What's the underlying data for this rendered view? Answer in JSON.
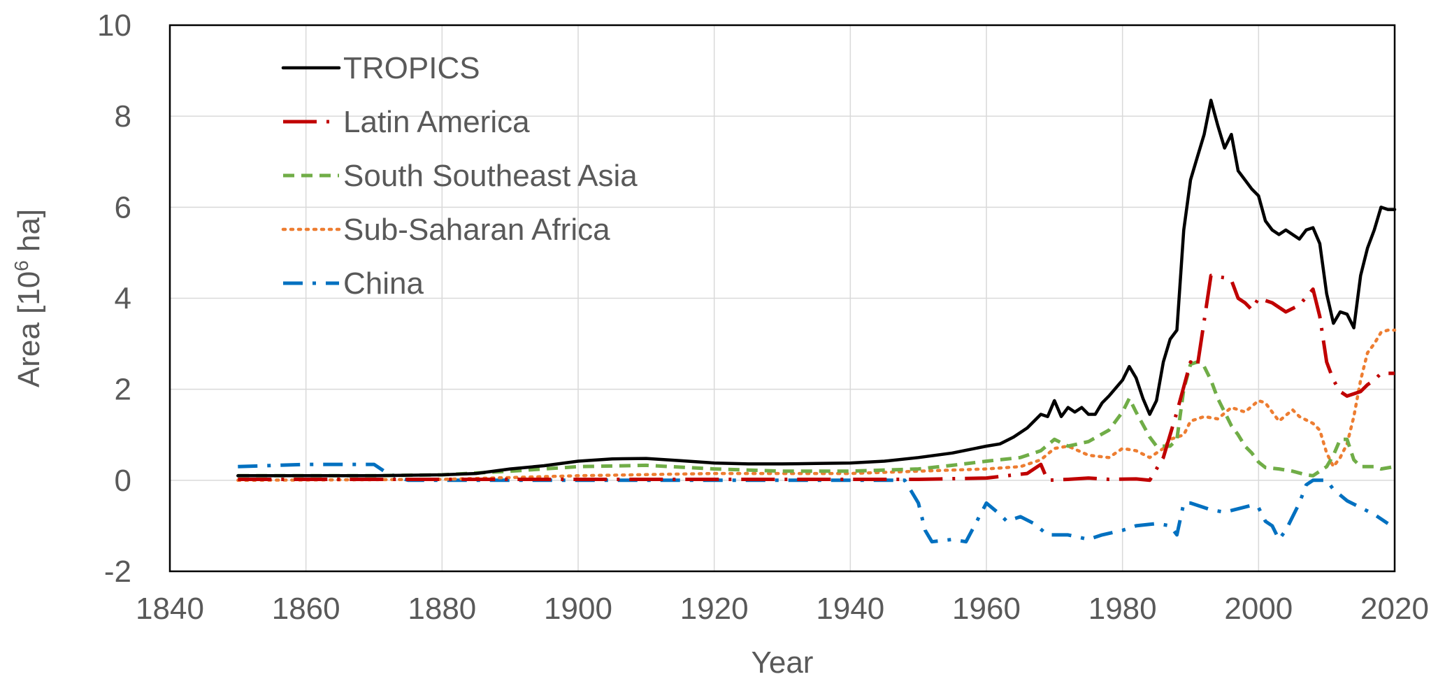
{
  "chart_data": {
    "type": "line",
    "xlabel": "Year",
    "ylabel_main": "Area [10",
    "ylabel_sup": "6",
    "ylabel_end": " ha]",
    "xlim": [
      1840,
      2020
    ],
    "ylim": [
      -2,
      10
    ],
    "xticks": [
      "1840",
      "1860",
      "1880",
      "1900",
      "1920",
      "1940",
      "1960",
      "1980",
      "2000",
      "2020"
    ],
    "yticks": [
      "-2",
      "0",
      "2",
      "4",
      "6",
      "8",
      "10"
    ],
    "grid": true,
    "legend_position": "top-left",
    "series": [
      {
        "name": "TROPICS",
        "color": "#000000",
        "style": "solid",
        "points": [
          [
            1850,
            0.1
          ],
          [
            1860,
            0.1
          ],
          [
            1870,
            0.1
          ],
          [
            1880,
            0.12
          ],
          [
            1885,
            0.15
          ],
          [
            1890,
            0.25
          ],
          [
            1895,
            0.32
          ],
          [
            1900,
            0.42
          ],
          [
            1905,
            0.47
          ],
          [
            1910,
            0.48
          ],
          [
            1915,
            0.43
          ],
          [
            1920,
            0.38
          ],
          [
            1925,
            0.36
          ],
          [
            1930,
            0.36
          ],
          [
            1935,
            0.37
          ],
          [
            1940,
            0.38
          ],
          [
            1945,
            0.42
          ],
          [
            1950,
            0.5
          ],
          [
            1955,
            0.6
          ],
          [
            1960,
            0.75
          ],
          [
            1962,
            0.8
          ],
          [
            1964,
            0.95
          ],
          [
            1966,
            1.15
          ],
          [
            1968,
            1.45
          ],
          [
            1969,
            1.4
          ],
          [
            1970,
            1.75
          ],
          [
            1971,
            1.4
          ],
          [
            1972,
            1.6
          ],
          [
            1973,
            1.5
          ],
          [
            1974,
            1.6
          ],
          [
            1975,
            1.45
          ],
          [
            1976,
            1.45
          ],
          [
            1977,
            1.7
          ],
          [
            1978,
            1.85
          ],
          [
            1980,
            2.2
          ],
          [
            1981,
            2.5
          ],
          [
            1982,
            2.25
          ],
          [
            1983,
            1.8
          ],
          [
            1984,
            1.45
          ],
          [
            1985,
            1.75
          ],
          [
            1986,
            2.6
          ],
          [
            1987,
            3.1
          ],
          [
            1988,
            3.3
          ],
          [
            1989,
            5.5
          ],
          [
            1990,
            6.6
          ],
          [
            1991,
            7.1
          ],
          [
            1992,
            7.6
          ],
          [
            1993,
            8.35
          ],
          [
            1994,
            7.8
          ],
          [
            1995,
            7.3
          ],
          [
            1996,
            7.6
          ],
          [
            1997,
            6.8
          ],
          [
            1998,
            6.6
          ],
          [
            1999,
            6.4
          ],
          [
            2000,
            6.25
          ],
          [
            2001,
            5.7
          ],
          [
            2002,
            5.5
          ],
          [
            2003,
            5.4
          ],
          [
            2004,
            5.5
          ],
          [
            2005,
            5.4
          ],
          [
            2006,
            5.3
          ],
          [
            2007,
            5.5
          ],
          [
            2008,
            5.55
          ],
          [
            2009,
            5.2
          ],
          [
            2010,
            4.1
          ],
          [
            2011,
            3.45
          ],
          [
            2012,
            3.7
          ],
          [
            2013,
            3.65
          ],
          [
            2014,
            3.35
          ],
          [
            2015,
            4.5
          ],
          [
            2016,
            5.1
          ],
          [
            2017,
            5.5
          ],
          [
            2018,
            6.0
          ],
          [
            2019,
            5.95
          ],
          [
            2020,
            5.95
          ]
        ]
      },
      {
        "name": "Latin America",
        "color": "#c00000",
        "style": "longdash",
        "points": [
          [
            1850,
            0.02
          ],
          [
            1900,
            0.02
          ],
          [
            1950,
            0.02
          ],
          [
            1960,
            0.05
          ],
          [
            1963,
            0.1
          ],
          [
            1966,
            0.15
          ],
          [
            1967,
            0.25
          ],
          [
            1968,
            0.35
          ],
          [
            1969,
            0.0
          ],
          [
            1972,
            0.02
          ],
          [
            1975,
            0.05
          ],
          [
            1978,
            0.02
          ],
          [
            1982,
            0.03
          ],
          [
            1984,
            0.0
          ],
          [
            1986,
            0.5
          ],
          [
            1988,
            1.5
          ],
          [
            1990,
            2.6
          ],
          [
            1991,
            2.5
          ],
          [
            1992,
            3.5
          ],
          [
            1993,
            4.5
          ],
          [
            1995,
            4.45
          ],
          [
            1996,
            4.4
          ],
          [
            1997,
            4.0
          ],
          [
            1998,
            3.9
          ],
          [
            1999,
            3.75
          ],
          [
            2000,
            4.0
          ],
          [
            2002,
            3.9
          ],
          [
            2004,
            3.7
          ],
          [
            2006,
            3.85
          ],
          [
            2008,
            4.2
          ],
          [
            2009,
            3.6
          ],
          [
            2010,
            2.6
          ],
          [
            2011,
            2.2
          ],
          [
            2012,
            1.95
          ],
          [
            2013,
            1.85
          ],
          [
            2015,
            1.95
          ],
          [
            2016,
            2.1
          ],
          [
            2017,
            2.2
          ],
          [
            2018,
            2.35
          ],
          [
            2020,
            2.35
          ]
        ]
      },
      {
        "name": "South Southeast Asia",
        "color": "#70ad47",
        "style": "dash",
        "points": [
          [
            1850,
            0.1
          ],
          [
            1870,
            0.1
          ],
          [
            1880,
            0.12
          ],
          [
            1890,
            0.2
          ],
          [
            1900,
            0.3
          ],
          [
            1910,
            0.33
          ],
          [
            1920,
            0.25
          ],
          [
            1930,
            0.2
          ],
          [
            1940,
            0.2
          ],
          [
            1950,
            0.25
          ],
          [
            1955,
            0.33
          ],
          [
            1960,
            0.42
          ],
          [
            1965,
            0.5
          ],
          [
            1968,
            0.65
          ],
          [
            1970,
            0.9
          ],
          [
            1972,
            0.75
          ],
          [
            1975,
            0.85
          ],
          [
            1978,
            1.1
          ],
          [
            1980,
            1.5
          ],
          [
            1981,
            1.8
          ],
          [
            1982,
            1.5
          ],
          [
            1984,
            0.95
          ],
          [
            1985,
            0.75
          ],
          [
            1987,
            0.75
          ],
          [
            1988,
            0.9
          ],
          [
            1989,
            2.0
          ],
          [
            1990,
            2.55
          ],
          [
            1991,
            2.6
          ],
          [
            1992,
            2.5
          ],
          [
            1993,
            2.2
          ],
          [
            1994,
            1.8
          ],
          [
            1995,
            1.5
          ],
          [
            1996,
            1.2
          ],
          [
            1997,
            1.0
          ],
          [
            1998,
            0.75
          ],
          [
            1999,
            0.6
          ],
          [
            2000,
            0.4
          ],
          [
            2001,
            0.28
          ],
          [
            2003,
            0.25
          ],
          [
            2005,
            0.2
          ],
          [
            2007,
            0.12
          ],
          [
            2008,
            0.1
          ],
          [
            2010,
            0.3
          ],
          [
            2011,
            0.55
          ],
          [
            2012,
            0.9
          ],
          [
            2013,
            0.9
          ],
          [
            2014,
            0.45
          ],
          [
            2015,
            0.3
          ],
          [
            2017,
            0.3
          ],
          [
            2018,
            0.25
          ],
          [
            2020,
            0.3
          ]
        ]
      },
      {
        "name": "Sub-Saharan Africa",
        "color": "#ed7d31",
        "style": "dot",
        "points": [
          [
            1850,
            0.0
          ],
          [
            1880,
            0.02
          ],
          [
            1900,
            0.1
          ],
          [
            1920,
            0.15
          ],
          [
            1940,
            0.15
          ],
          [
            1950,
            0.2
          ],
          [
            1960,
            0.25
          ],
          [
            1965,
            0.3
          ],
          [
            1968,
            0.45
          ],
          [
            1970,
            0.7
          ],
          [
            1972,
            0.75
          ],
          [
            1975,
            0.55
          ],
          [
            1978,
            0.5
          ],
          [
            1980,
            0.7
          ],
          [
            1982,
            0.65
          ],
          [
            1984,
            0.5
          ],
          [
            1986,
            0.7
          ],
          [
            1987,
            0.9
          ],
          [
            1989,
            1.0
          ],
          [
            1990,
            1.3
          ],
          [
            1992,
            1.4
          ],
          [
            1994,
            1.35
          ],
          [
            1996,
            1.6
          ],
          [
            1998,
            1.5
          ],
          [
            2000,
            1.75
          ],
          [
            2001,
            1.7
          ],
          [
            2003,
            1.3
          ],
          [
            2005,
            1.55
          ],
          [
            2006,
            1.4
          ],
          [
            2008,
            1.25
          ],
          [
            2009,
            1.1
          ],
          [
            2010,
            0.6
          ],
          [
            2011,
            0.3
          ],
          [
            2012,
            0.5
          ],
          [
            2013,
            0.8
          ],
          [
            2014,
            1.4
          ],
          [
            2015,
            2.2
          ],
          [
            2016,
            2.8
          ],
          [
            2017,
            3.0
          ],
          [
            2018,
            3.25
          ],
          [
            2019,
            3.3
          ],
          [
            2020,
            3.3
          ]
        ]
      },
      {
        "name": "China",
        "color": "#0070c0",
        "style": "dashdot",
        "points": [
          [
            1850,
            0.3
          ],
          [
            1860,
            0.35
          ],
          [
            1870,
            0.35
          ],
          [
            1872,
            0.15
          ],
          [
            1875,
            0.0
          ],
          [
            1880,
            0.0
          ],
          [
            1900,
            0.0
          ],
          [
            1920,
            0.0
          ],
          [
            1940,
            0.0
          ],
          [
            1948,
            0.0
          ],
          [
            1950,
            -0.5
          ],
          [
            1951,
            -1.1
          ],
          [
            1952,
            -1.35
          ],
          [
            1955,
            -1.3
          ],
          [
            1957,
            -1.35
          ],
          [
            1960,
            -0.5
          ],
          [
            1962,
            -0.75
          ],
          [
            1963,
            -0.9
          ],
          [
            1965,
            -0.8
          ],
          [
            1967,
            -0.95
          ],
          [
            1969,
            -1.2
          ],
          [
            1972,
            -1.2
          ],
          [
            1975,
            -1.3
          ],
          [
            1977,
            -1.2
          ],
          [
            1980,
            -1.1
          ],
          [
            1982,
            -1.0
          ],
          [
            1985,
            -0.95
          ],
          [
            1987,
            -1.0
          ],
          [
            1988,
            -1.2
          ],
          [
            1989,
            -0.5
          ],
          [
            1990,
            -0.5
          ],
          [
            1993,
            -0.65
          ],
          [
            1995,
            -0.7
          ],
          [
            1999,
            -0.55
          ],
          [
            2000,
            -0.6
          ],
          [
            2001,
            -0.9
          ],
          [
            2002,
            -1.0
          ],
          [
            2003,
            -1.3
          ],
          [
            2004,
            -1.1
          ],
          [
            2006,
            -0.5
          ],
          [
            2007,
            -0.1
          ],
          [
            2008,
            0.0
          ],
          [
            2010,
            0.0
          ],
          [
            2011,
            -0.2
          ],
          [
            2013,
            -0.45
          ],
          [
            2015,
            -0.6
          ],
          [
            2017,
            -0.75
          ],
          [
            2019,
            -0.95
          ]
        ]
      }
    ]
  }
}
